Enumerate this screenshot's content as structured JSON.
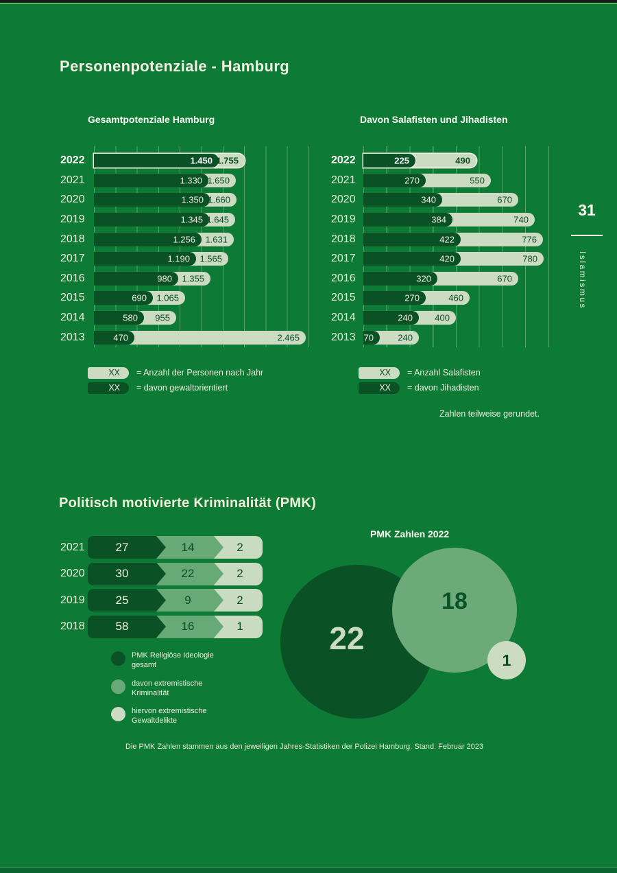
{
  "page": {
    "title": "Personenpotenziale - Hamburg",
    "page_number": "31",
    "sidebar_label": "Islamismus",
    "rounding_note": "Zahlen teilweise gerundet.",
    "footer": "Die PMK Zahlen stammen aus den jeweiligen Jahres-Statistiken der Polizei Hamburg. Stand: Februar 2023"
  },
  "colors": {
    "background": "#0d7b36",
    "dark_green": "#0a5126",
    "mid_green": "#67aa77",
    "light_green": "#cbdcc3",
    "cream_text": "#f1f0e0",
    "gridline": "#54a567"
  },
  "chart_data": [
    {
      "id": "gesamtpotenziale",
      "type": "bar",
      "orientation": "horizontal",
      "title": "Gesamtpotenziale Hamburg",
      "categories": [
        "2022",
        "2021",
        "2020",
        "2019",
        "2018",
        "2017",
        "2016",
        "2015",
        "2014",
        "2013"
      ],
      "xlim": [
        0,
        2500
      ],
      "grid_step": 250,
      "highlight_category": "2022",
      "series": [
        {
          "name": "Anzahl der Personen nach Jahr",
          "color": "light",
          "values": [
            1755,
            1650,
            1660,
            1645,
            1631,
            1565,
            1355,
            1065,
            955,
            2465
          ],
          "labels": [
            "1.755",
            "1.650",
            "1.660",
            "1.645",
            "1.631",
            "1.565",
            "1.355",
            "1.065",
            "955",
            "2.465"
          ]
        },
        {
          "name": "davon gewaltorientiert",
          "color": "dark",
          "values": [
            1450,
            1330,
            1350,
            1345,
            1256,
            1190,
            980,
            690,
            580,
            470
          ],
          "labels": [
            "1.450",
            "1.330",
            "1.350",
            "1.345",
            "1.256",
            "1.190",
            "980",
            "690",
            "580",
            "470"
          ]
        }
      ],
      "legend": [
        {
          "swatch": "light",
          "placeholder": "XX",
          "label": "= Anzahl der Personen nach Jahr"
        },
        {
          "swatch": "dark",
          "placeholder": "XX",
          "label": "= davon gewaltorientiert"
        }
      ]
    },
    {
      "id": "salafisten-jihadisten",
      "type": "bar",
      "orientation": "horizontal",
      "title": "Davon Salafisten und Jihadisten",
      "categories": [
        "2022",
        "2021",
        "2020",
        "2019",
        "2018",
        "2017",
        "2016",
        "2015",
        "2014",
        "2013"
      ],
      "xlim": [
        0,
        800
      ],
      "grid_step": 100,
      "highlight_category": "2022",
      "series": [
        {
          "name": "Anzahl Salafisten",
          "color": "light",
          "values": [
            490,
            550,
            670,
            740,
            776,
            780,
            670,
            460,
            400,
            240
          ],
          "labels": [
            "490",
            "550",
            "670",
            "740",
            "776",
            "780",
            "670",
            "460",
            "400",
            "240"
          ]
        },
        {
          "name": "davon Jihadisten",
          "color": "dark",
          "values": [
            225,
            270,
            340,
            384,
            422,
            420,
            320,
            270,
            240,
            70
          ],
          "labels": [
            "225",
            "270",
            "340",
            "384",
            "422",
            "420",
            "320",
            "270",
            "240",
            "70"
          ]
        }
      ],
      "legend": [
        {
          "swatch": "light",
          "placeholder": "XX",
          "label": "= Anzahl Salafisten"
        },
        {
          "swatch": "dark",
          "placeholder": "XX",
          "label": "= davon Jihadisten"
        }
      ]
    },
    {
      "id": "pmk",
      "type": "bar",
      "orientation": "horizontal",
      "title": "Politisch motivierte Kriminalität (PMK)",
      "categories": [
        "2021",
        "2020",
        "2019",
        "2018"
      ],
      "series": [
        {
          "name": "PMK Religiöse Ideologie gesamt",
          "color": "dark",
          "values": [
            27,
            30,
            25,
            58
          ]
        },
        {
          "name": "davon extremistische Kriminalität",
          "color": "mid",
          "values": [
            14,
            22,
            9,
            16
          ]
        },
        {
          "name": "hiervon extremistische Gewaltdelikte",
          "color": "light",
          "values": [
            2,
            2,
            2,
            1
          ]
        }
      ],
      "legend": [
        {
          "swatch": "dark",
          "label_lines": [
            "PMK Religiöse Ideologie",
            "gesamt"
          ]
        },
        {
          "swatch": "mid",
          "label_lines": [
            "davon extremistische",
            "Kriminalität"
          ]
        },
        {
          "swatch": "light",
          "label_lines": [
            "hiervon extremistische",
            "Gewaltdelikte"
          ]
        }
      ]
    },
    {
      "id": "pmk-2022",
      "type": "circles",
      "title": "PMK Zahlen 2022",
      "values": [
        {
          "name": "PMK Religiöse Ideologie gesamt",
          "color": "dark",
          "value": 22
        },
        {
          "name": "davon extremistische Kriminalität",
          "color": "mid",
          "value": 18
        },
        {
          "name": "hiervon extremistische Gewaltdelikte",
          "color": "light",
          "value": 1
        }
      ]
    }
  ]
}
